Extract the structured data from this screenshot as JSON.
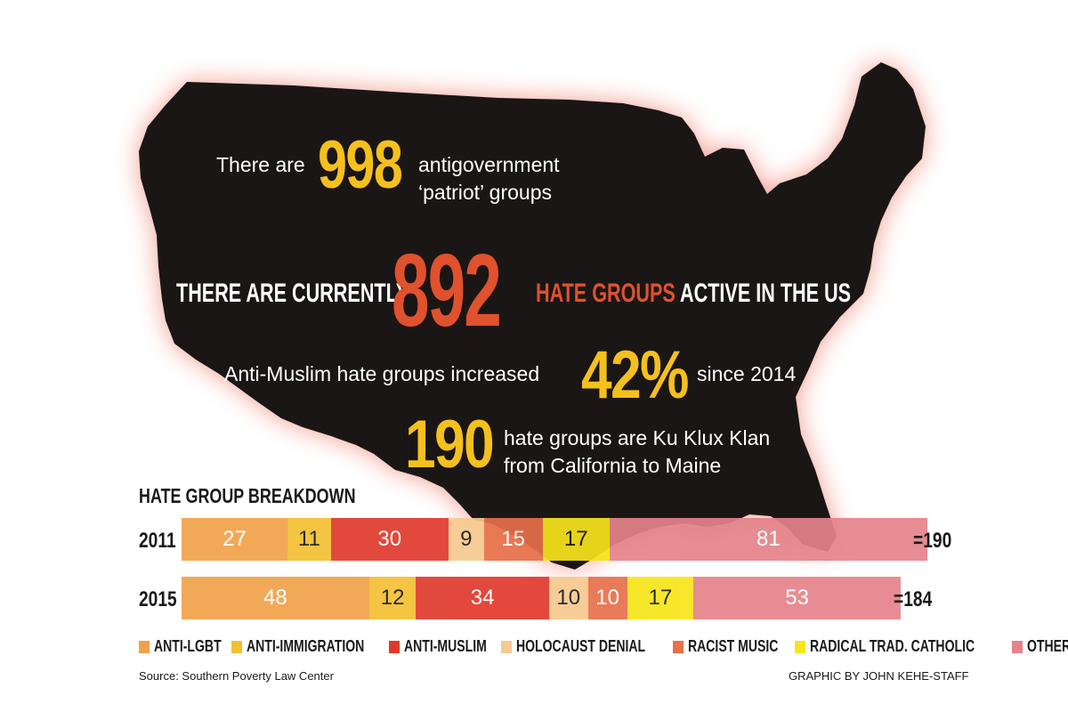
{
  "stats": {
    "patriot": {
      "pre": "There are",
      "number": "998",
      "post_line1": "antigovernment",
      "post_line2": "‘patriot’ groups"
    },
    "hate": {
      "pre": "THERE ARE CURRENTLY",
      "number": "892",
      "post_highlight": "HATE GROUPS",
      "post_rest": " ACTIVE IN THE US"
    },
    "muslim": {
      "pre": "Anti-Muslim hate groups increased",
      "number": "42%",
      "post": "since 2014"
    },
    "klan": {
      "number": "190",
      "post_line1": "hate groups are Ku Klux Klan",
      "post_line2": "from California to Maine"
    }
  },
  "colors": {
    "map_fill": "#1a1616",
    "map_glow": "#f08a7a",
    "anti_lgbt": "#f0a24a",
    "anti_immigration": "#f4bf33",
    "anti_muslim": "#e0392c",
    "holocaust_denial": "#f7c98f",
    "racist_music": "#e8704a",
    "radical_trad_catholic": "#f7e51a",
    "other": "#e5838a"
  },
  "chart_data": {
    "type": "bar",
    "title": "HATE GROUP BREAKDOWN",
    "orientation": "horizontal-stacked",
    "categories": [
      "2011",
      "2015"
    ],
    "series": [
      {
        "name": "ANTI-LGBT",
        "color": "#f0a24a",
        "values": [
          27,
          48
        ]
      },
      {
        "name": "ANTI-IMMIGRATION",
        "color": "#f4bf33",
        "values": [
          11,
          12
        ]
      },
      {
        "name": "ANTI-MUSLIM",
        "color": "#e0392c",
        "values": [
          30,
          34
        ]
      },
      {
        "name": "HOLOCAUST DENIAL",
        "color": "#f7c98f",
        "values": [
          9,
          10
        ]
      },
      {
        "name": "RACIST MUSIC",
        "color": "#e8704a",
        "values": [
          15,
          10
        ]
      },
      {
        "name": "RADICAL TRAD. CATHOLIC",
        "color": "#f7e51a",
        "values": [
          17,
          17
        ]
      },
      {
        "name": "OTHER",
        "color": "#e5838a",
        "values": [
          81,
          53
        ]
      }
    ],
    "totals": [
      "=190",
      "=184"
    ],
    "legend_placement": "bottom"
  },
  "footer": {
    "source": "Source:  Southern Poverty Law Center",
    "credit": "GRAPHIC BY JOHN KEHE-STAFF"
  }
}
